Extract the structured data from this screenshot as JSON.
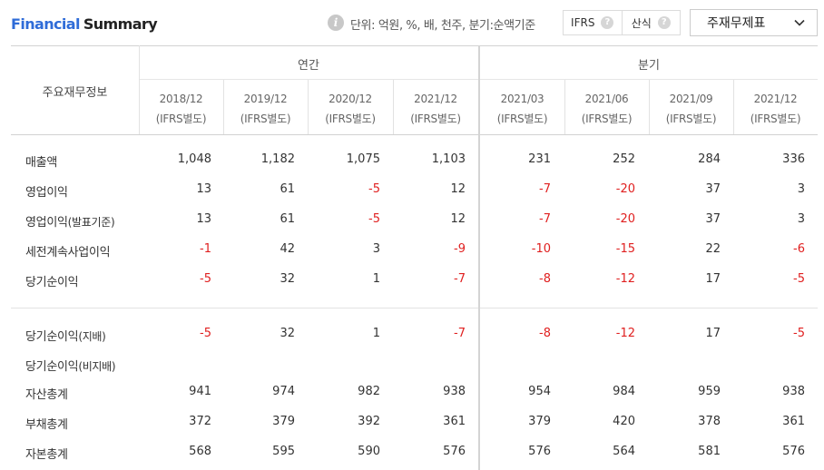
{
  "header": {
    "title_part1": "Financial",
    "title_part2": "Summary",
    "info_icon": "info-icon",
    "unit_text": "단위: 억원, %, 배, 천주, 분기:순액기준",
    "toggle": [
      "IFRS",
      "산식"
    ],
    "help_icon": "question-mark-icon",
    "help_glyph": "?",
    "select_value": "주재무제표"
  },
  "table": {
    "main_header": "주요재무정보",
    "groups": [
      "연간",
      "분기"
    ],
    "periods": [
      {
        "date": "2018/12",
        "basis": "(IFRS별도)"
      },
      {
        "date": "2019/12",
        "basis": "(IFRS별도)"
      },
      {
        "date": "2020/12",
        "basis": "(IFRS별도)"
      },
      {
        "date": "2021/12",
        "basis": "(IFRS별도)"
      },
      {
        "date": "2021/03",
        "basis": "(IFRS별도)"
      },
      {
        "date": "2021/06",
        "basis": "(IFRS별도)"
      },
      {
        "date": "2021/09",
        "basis": "(IFRS별도)"
      },
      {
        "date": "2021/12",
        "basis": "(IFRS별도)"
      }
    ],
    "rows": [
      {
        "label": "매출액",
        "sub": "",
        "values": [
          "1,048",
          "1,182",
          "1,075",
          "1,103",
          "231",
          "252",
          "284",
          "336"
        ]
      },
      {
        "label": "영업이익",
        "sub": "",
        "values": [
          "13",
          "61",
          "-5",
          "12",
          "-7",
          "-20",
          "37",
          "3"
        ]
      },
      {
        "label": "영업이익",
        "sub": "(발표기준)",
        "values": [
          "13",
          "61",
          "-5",
          "12",
          "-7",
          "-20",
          "37",
          "3"
        ]
      },
      {
        "label": "세전계속사업이익",
        "sub": "",
        "values": [
          "-1",
          "42",
          "3",
          "-9",
          "-10",
          "-15",
          "22",
          "-6"
        ]
      },
      {
        "label": "당기순이익",
        "sub": "",
        "values": [
          "-5",
          "32",
          "1",
          "-7",
          "-8",
          "-12",
          "17",
          "-5"
        ]
      },
      {
        "label": "당기순이익",
        "sub": "(지배)",
        "values": [
          "-5",
          "32",
          "1",
          "-7",
          "-8",
          "-12",
          "17",
          "-5"
        ]
      },
      {
        "label": "당기순이익",
        "sub": "(비지배)",
        "values": [
          "",
          "",
          "",
          "",
          "",
          "",
          "",
          ""
        ]
      },
      {
        "label": "자산총계",
        "sub": "",
        "values": [
          "941",
          "974",
          "982",
          "938",
          "954",
          "984",
          "959",
          "938"
        ]
      },
      {
        "label": "부채총계",
        "sub": "",
        "values": [
          "372",
          "379",
          "392",
          "361",
          "379",
          "420",
          "378",
          "361"
        ]
      },
      {
        "label": "자본총계",
        "sub": "",
        "values": [
          "568",
          "595",
          "590",
          "576",
          "576",
          "564",
          "581",
          "576"
        ]
      }
    ]
  },
  "colors": {
    "title_accent": "#2f6cd8",
    "negative": "#e02020",
    "text": "#333333",
    "border": "#e2e2e2"
  }
}
